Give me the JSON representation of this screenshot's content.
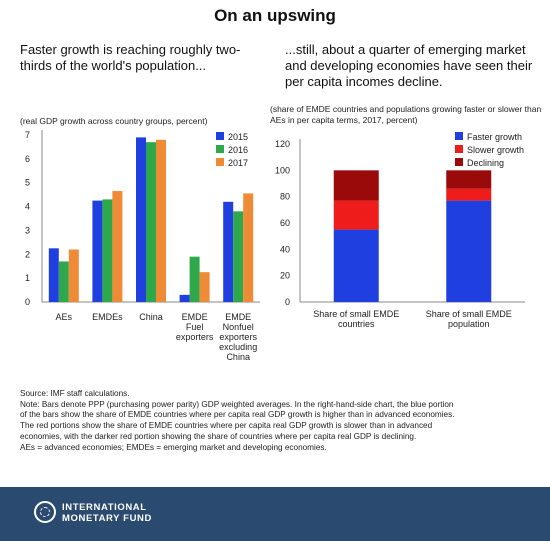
{
  "title": "On an upswing",
  "left_panel": {
    "subhead": "Faster growth is reaching roughly two-thirds of the world's population...",
    "note": "(real GDP growth across country groups, percent)"
  },
  "right_panel": {
    "subhead": "...still, about a quarter of emerging market and developing economies have seen their per capita incomes decline.",
    "note": "(share of EMDE countries and populations growing faster or slower than AEs in per capita terms, 2017, percent)"
  },
  "chart_data": [
    {
      "type": "bar",
      "categories": [
        [
          "AEs"
        ],
        [
          "EMDEs"
        ],
        [
          "China"
        ],
        [
          "EMDE",
          "Fuel",
          "exporters"
        ],
        [
          "EMDE",
          "Nonfuel",
          "exporters",
          "excluding",
          "China"
        ]
      ],
      "series": [
        {
          "name": "2015",
          "color": "#1f3fe0",
          "values": [
            2.25,
            4.25,
            6.9,
            0.3,
            4.2
          ]
        },
        {
          "name": "2016",
          "color": "#2ea84a",
          "values": [
            1.7,
            4.3,
            6.7,
            1.9,
            3.8
          ]
        },
        {
          "name": "2017",
          "color": "#ef8a36",
          "values": [
            2.2,
            4.65,
            6.8,
            1.25,
            4.55
          ]
        }
      ],
      "ylim": [
        0,
        7
      ],
      "yticks": [
        0,
        1,
        2,
        3,
        4,
        5,
        6,
        7
      ],
      "grid": false,
      "legend": "top-right"
    },
    {
      "type": "bar",
      "stacked": true,
      "categories": [
        [
          "Share of small EMDE",
          "countries"
        ],
        [
          "Share of small EMDE",
          "population"
        ]
      ],
      "series": [
        {
          "name": "Faster growth",
          "color": "#1f3fe0",
          "values": [
            55,
            77
          ]
        },
        {
          "name": "Slower growth",
          "color": "#ef1c1c",
          "values": [
            22,
            9
          ]
        },
        {
          "name": "Declining",
          "color": "#9b0a0a",
          "values": [
            23,
            14
          ]
        }
      ],
      "ylim": [
        0,
        120
      ],
      "yticks": [
        0,
        20,
        40,
        60,
        80,
        100,
        120
      ],
      "grid": false,
      "legend": "top-right"
    }
  ],
  "footnotes": {
    "source": "Source: IMF staff calculations.",
    "note_lines": [
      "Note: Bars denote PPP (purchasing power parity) GDP weighted averages. In the right-hand-side chart, the blue portion",
      "of the bars show the share of EMDE countries where per capita real GDP growth is higher than in advanced economies.",
      "The red portions show the share of EMDE countries where per capita real GDP growth is slower than in advanced",
      "economies, with the darker red portion showing the share of countries where per capita real GDP is declining.",
      "AEs = advanced economies; EMDEs = emerging market and developing economies."
    ]
  },
  "footer": {
    "logo_line1": "INTERNATIONAL",
    "logo_line2": "MONETARY FUND",
    "background": "#2b4a6f"
  }
}
